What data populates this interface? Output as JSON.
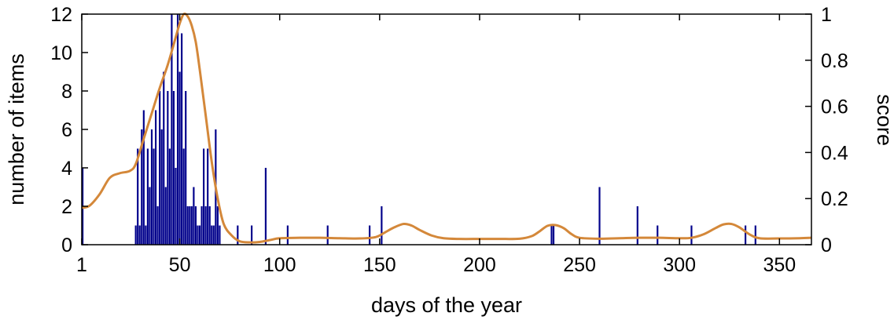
{
  "chart_data": {
    "type": "bar",
    "xlabel": "days of the year",
    "ylabel": "number of items",
    "y2label": "score",
    "xlim": [
      1,
      366
    ],
    "ylim": [
      0,
      12
    ],
    "y2lim": [
      0,
      1
    ],
    "x_ticks": [
      1,
      50,
      100,
      150,
      200,
      250,
      300,
      350
    ],
    "y_ticks": [
      0,
      2,
      4,
      6,
      8,
      10,
      12
    ],
    "y2_ticks": [
      0,
      0.2,
      0.4,
      0.6,
      0.8,
      1
    ],
    "y2_tick_labels": [
      "0",
      "0.2",
      "0.4",
      "0.6",
      "0.8",
      "1"
    ],
    "grid": false,
    "colors": {
      "bars": "#00008b",
      "line": "#d4883a"
    },
    "series": [
      {
        "kind": "bar",
        "axis": "left",
        "x": [
          1,
          28,
          29,
          30,
          31,
          32,
          33,
          34,
          35,
          36,
          37,
          38,
          39,
          40,
          41,
          42,
          43,
          44,
          45,
          46,
          47,
          48,
          49,
          50,
          51,
          52,
          53,
          54,
          55,
          56,
          57,
          58,
          59,
          60,
          61,
          62,
          63,
          64,
          65,
          66,
          67,
          68,
          69,
          70,
          79,
          86,
          93,
          104,
          124,
          145,
          151,
          236,
          237,
          260,
          279,
          289,
          306,
          333,
          338
        ],
        "values": [
          4,
          1,
          5,
          1,
          6,
          7,
          1,
          5,
          3,
          6,
          5,
          7,
          2,
          8,
          6,
          9,
          3,
          8,
          5,
          12,
          8,
          4,
          12,
          9,
          11,
          5,
          8,
          2,
          2,
          2,
          3,
          2,
          1,
          1,
          2,
          5,
          2,
          5,
          2,
          1,
          1,
          6,
          2,
          1,
          1,
          1,
          4,
          1,
          1,
          1,
          2,
          1,
          1,
          3,
          2,
          1,
          1,
          1,
          1
        ]
      },
      {
        "kind": "line",
        "axis": "right",
        "x": [
          1,
          5,
          10,
          15,
          20,
          25,
          28,
          32,
          36,
          40,
          44,
          48,
          50,
          52,
          54,
          56,
          58,
          60,
          63,
          66,
          69,
          72,
          76,
          80,
          85,
          90,
          95,
          100,
          110,
          120,
          130,
          140,
          148,
          152,
          157,
          162,
          166,
          170,
          176,
          182,
          190,
          200,
          210,
          220,
          226,
          230,
          234,
          238,
          242,
          246,
          250,
          260,
          270,
          280,
          290,
          300,
          306,
          312,
          318,
          322,
          326,
          330,
          335,
          340,
          350,
          360,
          366
        ],
        "values": [
          0.16,
          0.17,
          0.22,
          0.29,
          0.31,
          0.32,
          0.35,
          0.46,
          0.57,
          0.68,
          0.78,
          0.9,
          0.96,
          1.0,
          0.99,
          0.95,
          0.88,
          0.76,
          0.56,
          0.36,
          0.2,
          0.09,
          0.04,
          0.015,
          0.01,
          0.012,
          0.02,
          0.028,
          0.03,
          0.03,
          0.028,
          0.027,
          0.033,
          0.05,
          0.074,
          0.09,
          0.083,
          0.064,
          0.04,
          0.028,
          0.025,
          0.025,
          0.025,
          0.026,
          0.037,
          0.058,
          0.082,
          0.085,
          0.072,
          0.046,
          0.03,
          0.026,
          0.028,
          0.03,
          0.03,
          0.028,
          0.03,
          0.045,
          0.072,
          0.088,
          0.09,
          0.075,
          0.045,
          0.028,
          0.027,
          0.028,
          0.03
        ]
      }
    ]
  }
}
